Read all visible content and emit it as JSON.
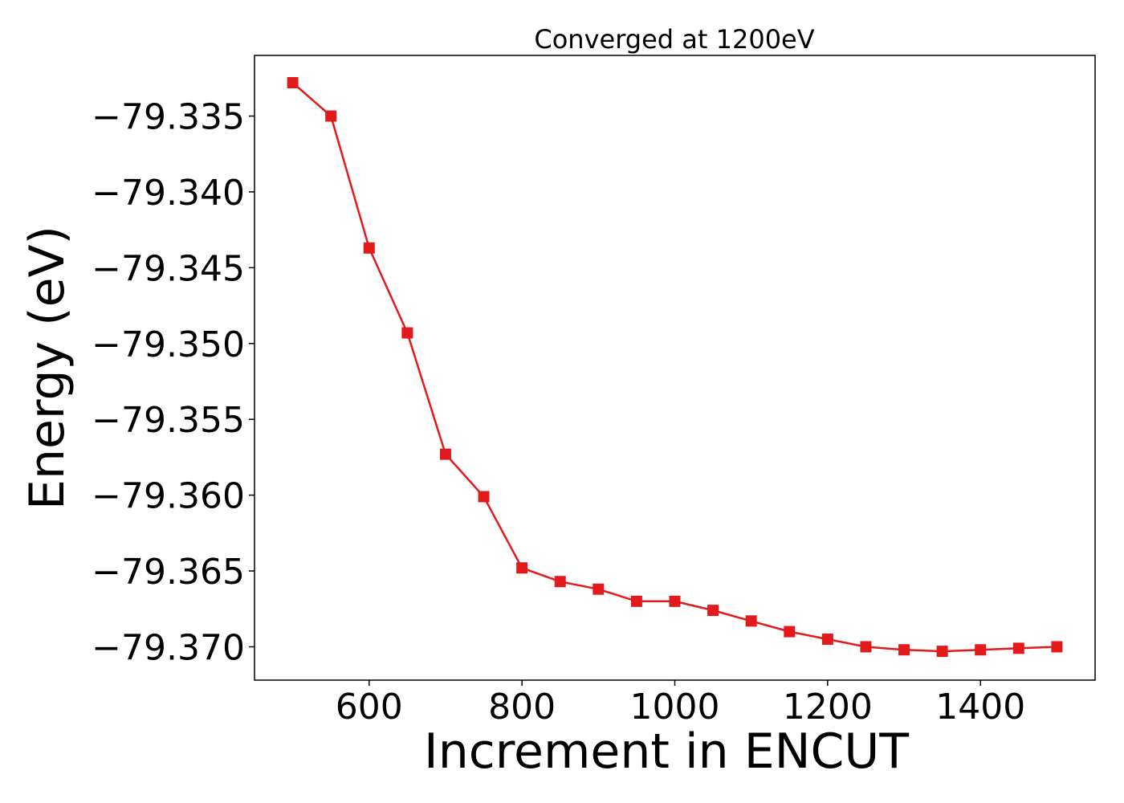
{
  "chart_data": {
    "type": "line",
    "title": "Converged at 1200eV",
    "xlabel": "Increment in ENCUT",
    "ylabel": "Energy (eV)",
    "xlim": [
      450,
      1550
    ],
    "ylim": [
      -79.3722,
      -79.331
    ],
    "x_ticks": [
      600,
      800,
      1000,
      1200,
      1400
    ],
    "x_tick_labels": [
      "600",
      "800",
      "1000",
      "1200",
      "1400"
    ],
    "y_ticks": [
      -79.335,
      -79.34,
      -79.345,
      -79.35,
      -79.355,
      -79.36,
      -79.365,
      -79.37
    ],
    "y_tick_labels": [
      "−79.335",
      "−79.340",
      "−79.345",
      "−79.350",
      "−79.355",
      "−79.360",
      "−79.365",
      "−79.370"
    ],
    "grid": false,
    "series": [
      {
        "color": "#e31a1c",
        "marker": "square",
        "x": [
          500,
          550,
          600,
          650,
          700,
          750,
          800,
          850,
          900,
          950,
          1000,
          1050,
          1100,
          1150,
          1200,
          1250,
          1300,
          1350,
          1400,
          1450,
          1500
        ],
        "y": [
          -79.3328,
          -79.335,
          -79.3437,
          -79.3493,
          -79.3573,
          -79.3601,
          -79.3648,
          -79.3657,
          -79.3662,
          -79.367,
          -79.367,
          -79.3676,
          -79.3683,
          -79.369,
          -79.3695,
          -79.37,
          -79.3702,
          -79.3703,
          -79.3702,
          -79.3701,
          -79.37
        ]
      }
    ]
  }
}
